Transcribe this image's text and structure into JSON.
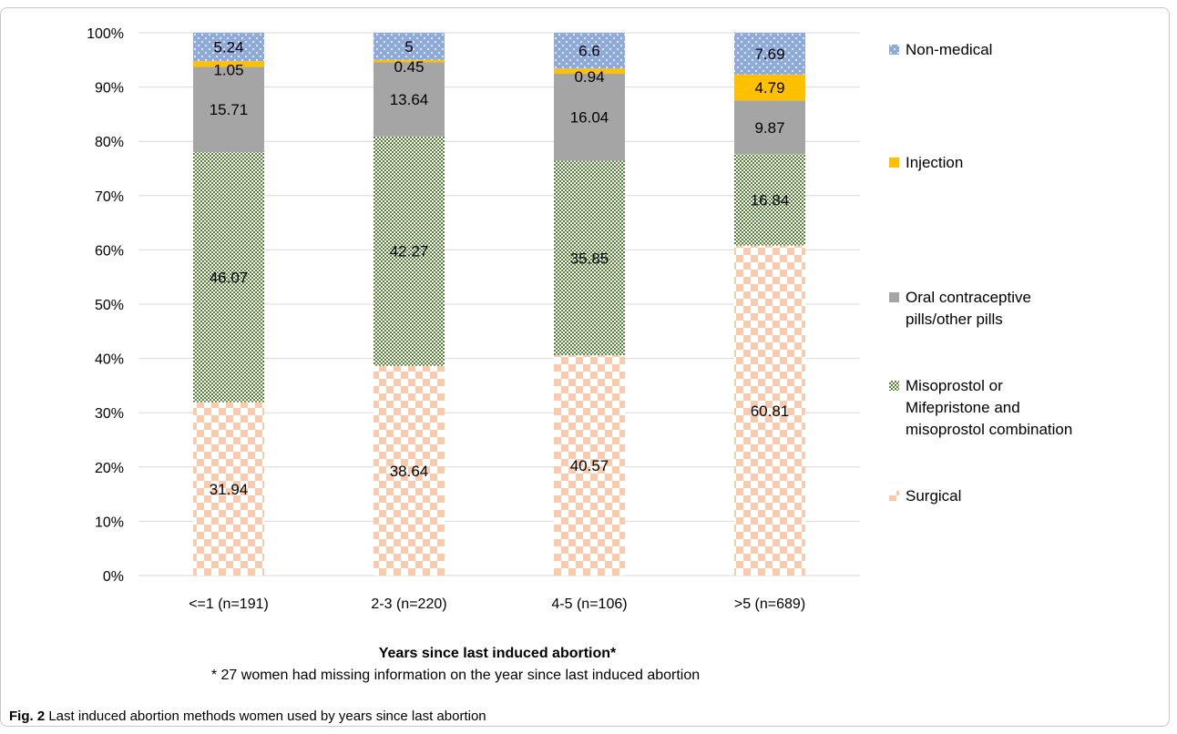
{
  "chart_data": {
    "type": "bar",
    "stacked": true,
    "percent_stacked": true,
    "xlabel": "Years since last induced abortion*",
    "footnote": "* 27 women had missing information on the year since last induced abortion",
    "ylim": [
      0,
      100
    ],
    "y_ticks": [
      "0%",
      "10%",
      "20%",
      "30%",
      "40%",
      "50%",
      "60%",
      "70%",
      "80%",
      "90%",
      "100%"
    ],
    "categories": [
      "<=1  (n=191)",
      "2-3 (n=220)",
      "4-5 (n=106)",
      ">5 (n=689)"
    ],
    "series": [
      {
        "name": "Surgical",
        "color": "#f8cbad",
        "pattern": "checker",
        "values": [
          31.94,
          38.64,
          40.57,
          60.81
        ]
      },
      {
        "name": "Misoprostol or Mifepristone and misoprostol combination",
        "legend_lines": [
          "Misoprostol or",
          "Mifepristone and",
          "misoprostol combination"
        ],
        "color": "#548235",
        "pattern": "small-checker",
        "values": [
          46.07,
          42.27,
          35.85,
          16.84
        ]
      },
      {
        "name": "Oral contraceptive pills/other pills",
        "legend_lines": [
          "Oral contraceptive",
          "pills/other pills"
        ],
        "color": "#a5a5a5",
        "pattern": "solid",
        "values": [
          15.71,
          13.64,
          16.04,
          9.87
        ]
      },
      {
        "name": "Injection",
        "legend_lines": [
          "Injection"
        ],
        "color": "#ffc000",
        "pattern": "solid",
        "values": [
          1.05,
          0.45,
          0.94,
          4.79
        ]
      },
      {
        "name": "Non-medical",
        "legend_lines": [
          "Non-medical"
        ],
        "color": "#8faadc",
        "pattern": "dots",
        "values": [
          5.24,
          5,
          6.6,
          7.69
        ]
      }
    ],
    "legend_position": "right",
    "grid": true
  },
  "caption": {
    "label": "Fig. 2",
    "text": "Last induced abortion methods women used by years since last abortion"
  }
}
